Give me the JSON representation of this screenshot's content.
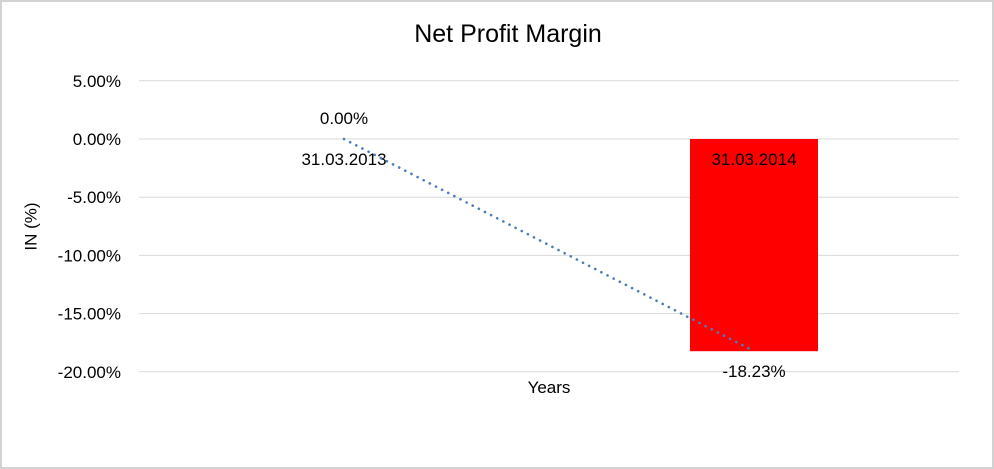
{
  "chart": {
    "title": "Net Profit Margin",
    "y_axis_title": "IN (%)",
    "x_axis_title": "Years"
  },
  "chart_data": {
    "type": "bar",
    "title": "Net Profit Margin",
    "xlabel": "Years",
    "ylabel": "IN (%)",
    "categories": [
      "31.03.2013",
      "31.03.2014"
    ],
    "values": [
      0,
      -18.23
    ],
    "data_labels": [
      "0.00%",
      "-18.23%"
    ],
    "yticks": [
      5,
      0,
      -5,
      -10,
      -15,
      -20
    ],
    "ytick_labels": [
      "5.00%",
      "0.00%",
      "-5.00%",
      "-10.00%",
      "-15.00%",
      "-20.00%"
    ],
    "ylim": [
      -20,
      5
    ],
    "grid": true,
    "legend": false,
    "bar_color": "#FF0000",
    "bar_label_color": "#000000",
    "gridline_color": "#D9D9D9",
    "trendline": {
      "type": "linear",
      "style": "dotted",
      "color": "#4A7EBB",
      "x": [
        0,
        1
      ],
      "y": [
        0,
        -18.23
      ]
    }
  }
}
